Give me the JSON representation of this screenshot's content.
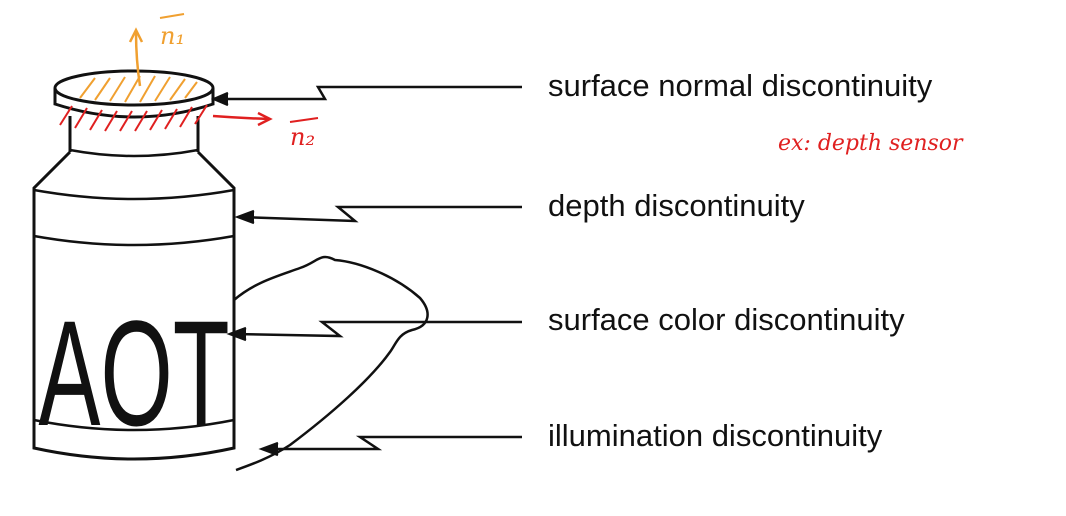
{
  "labels": [
    "surface normal discontinuity",
    "depth discontinuity",
    "surface color discontinuity",
    "illumination discontinuity"
  ],
  "bottle_text": "AOT",
  "annotations": {
    "normal_1": "n₁",
    "normal_2": "n₂",
    "note": "ex: depth sensor"
  },
  "colors": {
    "ink": "#111111",
    "highlight_top": "#f0a030",
    "highlight_side": "#e02020"
  }
}
